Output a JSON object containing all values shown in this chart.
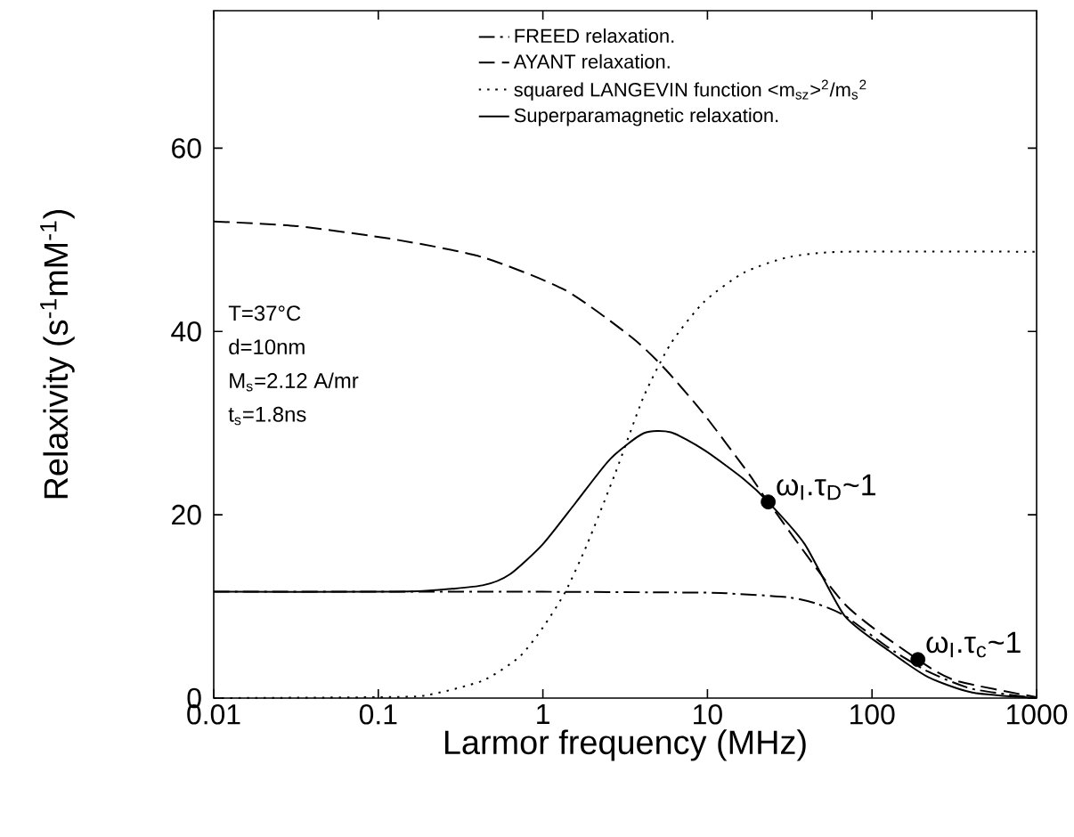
{
  "chart_data": {
    "type": "line",
    "xlabel": "Larmor frequency (MHz)",
    "ylabel": "Relaxivity (s$^{-1}$mM$^{-1}$)",
    "log": "x",
    "xlim": [
      0.01,
      1000
    ],
    "ylim": [
      0,
      75
    ],
    "xticks": [
      {
        "value": 0.01,
        "label": "0.01"
      },
      {
        "value": 0.1,
        "label": "0.1"
      },
      {
        "value": 1,
        "label": "1"
      },
      {
        "value": 10,
        "label": "10"
      },
      {
        "value": 100,
        "label": "100"
      },
      {
        "value": 1000,
        "label": "1000"
      }
    ],
    "yticks": [
      0,
      20,
      40,
      60
    ],
    "grid": false,
    "legend": "top",
    "series": [
      {
        "name": "FREED relaxation.",
        "color": "#000000",
        "line_style": "dashdot",
        "x": [
          0.01,
          0.1,
          1,
          10,
          14,
          31,
          46,
          68,
          126,
          219,
          407,
          1000
        ],
        "values": [
          11.6,
          11.6,
          11.6,
          11.5,
          11.4,
          11.0,
          10.3,
          9.0,
          5.5,
          2.9,
          1.0,
          0
        ]
      },
      {
        "name": "AYANT relaxation.",
        "color": "#000000",
        "line_style": "dashed",
        "x": [
          0.01,
          0.032,
          0.13,
          0.43,
          1.37,
          3.5,
          5.6,
          9.5,
          17.8,
          23.4,
          68,
          190,
          324,
          1000
        ],
        "values": [
          52.0,
          51.5,
          50.0,
          48.1,
          44.5,
          39.3,
          35.8,
          31.0,
          24.5,
          21.4,
          10.3,
          4.2,
          1.9,
          0.1
        ]
      },
      {
        "name": "squared LANGEVIN function  <m$_{sz}$>$^{2}$/m$_{s}$$^{2}$",
        "color": "#000000",
        "line_style": "dotted",
        "x": [
          0.01,
          0.1,
          0.195,
          0.43,
          0.72,
          1,
          1.37,
          1.86,
          2.75,
          4.1,
          6.0,
          9.5,
          16.6,
          31,
          68,
          1000
        ],
        "values": [
          0,
          0.1,
          0.3,
          1.9,
          4.5,
          7.7,
          11.6,
          16.8,
          24.5,
          32.9,
          38.7,
          43.2,
          46.4,
          48.1,
          48.7,
          48.7
        ]
      },
      {
        "name": "Superparamagnetic relaxation.",
        "color": "#000000",
        "line_style": "solid",
        "x": [
          0.01,
          0.1,
          0.195,
          0.43,
          0.63,
          1,
          1.58,
          2.57,
          4.1,
          6.0,
          9.5,
          16.6,
          23.4,
          39,
          68,
          126,
          219,
          407,
          1000
        ],
        "values": [
          11.6,
          11.6,
          11.7,
          12.3,
          13.5,
          16.8,
          21.3,
          26.1,
          28.9,
          29.0,
          27.1,
          23.9,
          21.4,
          16.8,
          9.0,
          5.2,
          2.3,
          0.6,
          0
        ]
      },
      {
        "type": "scatter",
        "marker": "circle",
        "color": "#000000",
        "x": [
          23.4,
          190
        ],
        "values": [
          21.4,
          4.2
        ]
      }
    ],
    "annotations": [
      "T=37°C",
      "d=10nm",
      "M$_{s}$=2.12 A/mr",
      "t$_{s}$=1.8ns",
      {
        "text": "ω$_{I}$.τ$_{D}$~1",
        "x": 23.4,
        "y": 21.4
      },
      {
        "text": "ω$_{I}$.τ$_{c}$~1",
        "x": 190,
        "y": 4.2
      }
    ]
  }
}
